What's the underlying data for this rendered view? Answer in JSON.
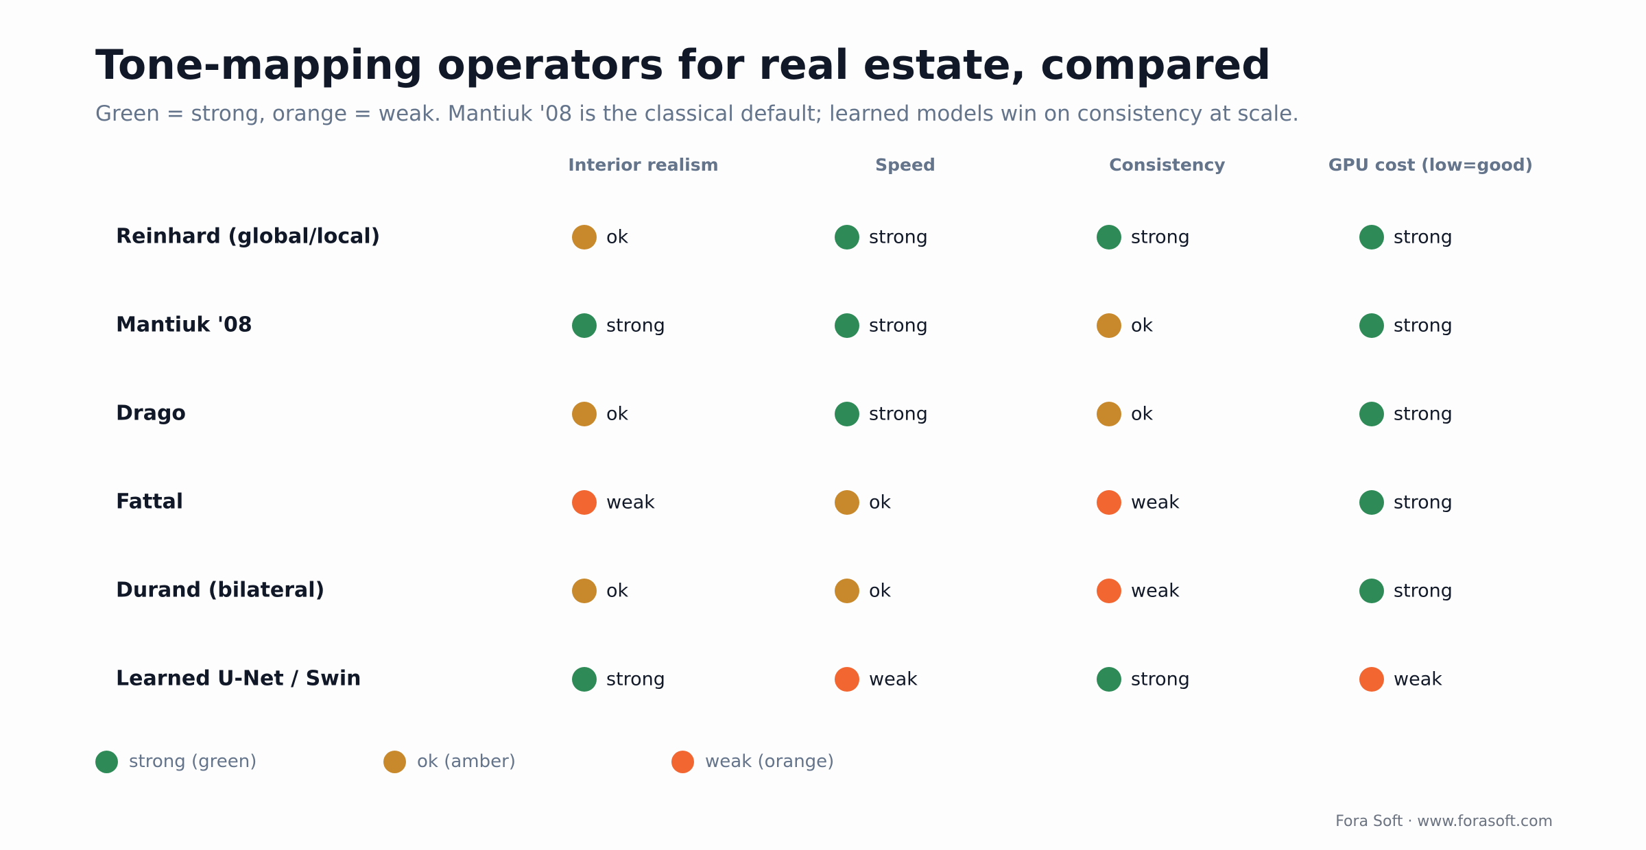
{
  "header": {
    "title": "Tone-mapping operators for real estate, compared",
    "subtitle": "Green = strong, orange = weak. Mantiuk '08 is the classical default; learned models win on consistency at scale."
  },
  "colors": {
    "strong": "#2e8b57",
    "ok": "#c8892c",
    "weak": "#f26632"
  },
  "chart_data": {
    "type": "table",
    "columns": [
      "Interior realism",
      "Speed",
      "Consistency",
      "GPU cost (low=good)"
    ],
    "rows": [
      {
        "label": "Reinhard (global/local)",
        "values": [
          "ok",
          "strong",
          "strong",
          "strong"
        ]
      },
      {
        "label": "Mantiuk '08",
        "values": [
          "strong",
          "strong",
          "ok",
          "strong"
        ]
      },
      {
        "label": "Drago",
        "values": [
          "ok",
          "strong",
          "ok",
          "strong"
        ]
      },
      {
        "label": "Fattal",
        "values": [
          "weak",
          "ok",
          "weak",
          "strong"
        ]
      },
      {
        "label": "Durand (bilateral)",
        "values": [
          "ok",
          "ok",
          "weak",
          "strong"
        ]
      },
      {
        "label": "Learned U-Net / Swin",
        "values": [
          "strong",
          "weak",
          "strong",
          "weak"
        ]
      }
    ]
  },
  "legend": {
    "items": [
      {
        "key": "strong",
        "label": "strong (green)"
      },
      {
        "key": "ok",
        "label": "ok (amber)"
      },
      {
        "key": "weak",
        "label": "weak (orange)"
      }
    ]
  },
  "footer": {
    "credit": "Fora Soft · www.forasoft.com"
  }
}
